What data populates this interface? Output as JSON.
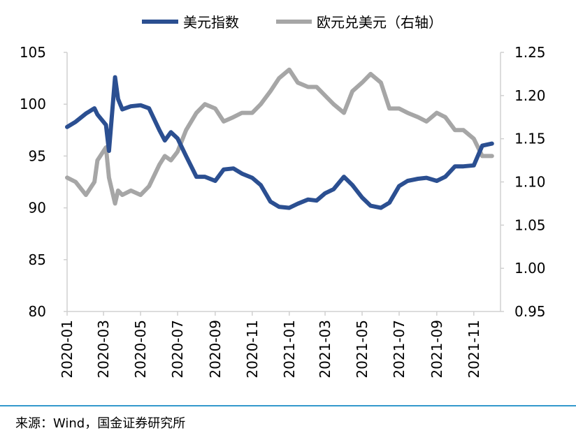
{
  "source": "来源：Wind，国金证券研究所",
  "chart_data": {
    "type": "line",
    "legend": [
      "美元指数",
      "欧元兑美元（右轴）"
    ],
    "legend_position": "top",
    "colors": {
      "dxy": "#2b4f91",
      "eurusd": "#a6a6a6"
    },
    "y_left": {
      "ylim": [
        80,
        105
      ],
      "ticks": [
        "80",
        "85",
        "90",
        "95",
        "100",
        "105"
      ]
    },
    "y_right": {
      "ylim": [
        0.95,
        1.25
      ],
      "ticks": [
        "0.95",
        "1.00",
        "1.05",
        "1.10",
        "1.15",
        "1.20",
        "1.25"
      ]
    },
    "x_ticks": [
      "2020-01",
      "2020-03",
      "2020-05",
      "2020-07",
      "2020-09",
      "2020-11",
      "2021-01",
      "2021-03",
      "2021-05",
      "2021-07",
      "2021-09",
      "2021-11"
    ],
    "grid": false,
    "series": [
      {
        "name": "美元指数",
        "axis": "left",
        "x": [
          "2020-01-01",
          "2020-01-15",
          "2020-02-01",
          "2020-02-15",
          "2020-02-20",
          "2020-03-05",
          "2020-03-10",
          "2020-03-20",
          "2020-03-25",
          "2020-04-01",
          "2020-04-15",
          "2020-05-01",
          "2020-05-15",
          "2020-06-01",
          "2020-06-10",
          "2020-06-20",
          "2020-07-01",
          "2020-07-15",
          "2020-08-01",
          "2020-08-15",
          "2020-09-01",
          "2020-09-15",
          "2020-10-01",
          "2020-10-15",
          "2020-11-01",
          "2020-11-15",
          "2020-12-01",
          "2020-12-15",
          "2021-01-01",
          "2021-01-15",
          "2021-02-01",
          "2021-02-15",
          "2021-03-01",
          "2021-03-15",
          "2021-04-01",
          "2021-04-15",
          "2021-05-01",
          "2021-05-15",
          "2021-06-01",
          "2021-06-15",
          "2021-07-01",
          "2021-07-15",
          "2021-08-01",
          "2021-08-15",
          "2021-09-01",
          "2021-09-15",
          "2021-10-01",
          "2021-10-15",
          "2021-11-01",
          "2021-11-15",
          "2021-12-01"
        ],
        "values": [
          97.8,
          98.3,
          99.1,
          99.6,
          99.0,
          98.0,
          95.5,
          102.6,
          100.5,
          99.5,
          99.8,
          99.9,
          99.6,
          97.5,
          96.5,
          97.3,
          96.7,
          95.0,
          93.0,
          93.0,
          92.6,
          93.7,
          93.8,
          93.3,
          92.9,
          92.2,
          90.6,
          90.1,
          90.0,
          90.4,
          90.8,
          90.7,
          91.4,
          91.8,
          93.0,
          92.2,
          91.0,
          90.2,
          90.0,
          90.5,
          92.1,
          92.6,
          92.8,
          92.9,
          92.6,
          93.0,
          94.0,
          94.0,
          94.1,
          96.0,
          96.2
        ]
      },
      {
        "name": "欧元兑美元（右轴）",
        "axis": "right",
        "x": [
          "2020-01-01",
          "2020-01-15",
          "2020-02-01",
          "2020-02-15",
          "2020-02-20",
          "2020-03-05",
          "2020-03-10",
          "2020-03-20",
          "2020-03-25",
          "2020-04-01",
          "2020-04-15",
          "2020-05-01",
          "2020-05-15",
          "2020-06-01",
          "2020-06-10",
          "2020-06-20",
          "2020-07-01",
          "2020-07-15",
          "2020-08-01",
          "2020-08-15",
          "2020-09-01",
          "2020-09-15",
          "2020-10-01",
          "2020-10-15",
          "2020-11-01",
          "2020-11-15",
          "2020-12-01",
          "2020-12-15",
          "2021-01-01",
          "2021-01-15",
          "2021-02-01",
          "2021-02-15",
          "2021-03-01",
          "2021-03-15",
          "2021-04-01",
          "2021-04-15",
          "2021-05-01",
          "2021-05-15",
          "2021-06-01",
          "2021-06-15",
          "2021-07-01",
          "2021-07-15",
          "2021-08-01",
          "2021-08-15",
          "2021-09-01",
          "2021-09-15",
          "2021-10-01",
          "2021-10-15",
          "2021-11-01",
          "2021-11-15",
          "2021-12-01"
        ],
        "values": [
          1.105,
          1.1,
          1.085,
          1.1,
          1.125,
          1.14,
          1.105,
          1.075,
          1.09,
          1.085,
          1.09,
          1.085,
          1.095,
          1.12,
          1.13,
          1.125,
          1.135,
          1.16,
          1.18,
          1.19,
          1.185,
          1.17,
          1.175,
          1.18,
          1.18,
          1.19,
          1.205,
          1.22,
          1.23,
          1.215,
          1.21,
          1.21,
          1.2,
          1.19,
          1.18,
          1.205,
          1.215,
          1.225,
          1.215,
          1.185,
          1.185,
          1.18,
          1.175,
          1.17,
          1.18,
          1.175,
          1.16,
          1.16,
          1.15,
          1.13,
          1.13
        ]
      }
    ]
  }
}
